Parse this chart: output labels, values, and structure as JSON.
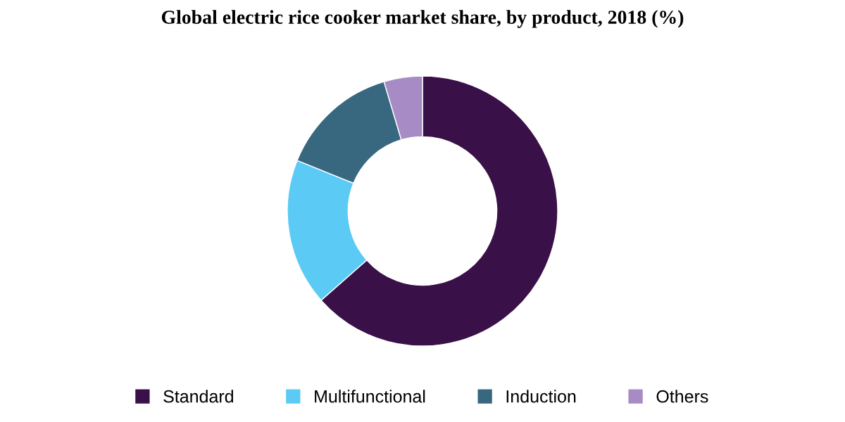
{
  "chart_data": {
    "type": "donut",
    "title": "Global electric rice cooker market share, by product, 2018 (%)",
    "categories": [
      "Standard",
      "Multifunctional",
      "Induction",
      "Others"
    ],
    "values": [
      63.5,
      17.6,
      14.3,
      4.6
    ],
    "colors": [
      "#3a1048",
      "#5bcbf5",
      "#376880",
      "#a78bc4"
    ],
    "legend": "bottom"
  }
}
